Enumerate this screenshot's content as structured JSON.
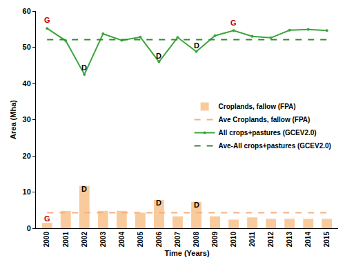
{
  "chart_data": {
    "type": "bar",
    "x_label": "Time (Years)",
    "y_label": "Area (Mha)",
    "categories": [
      "2000",
      "2001",
      "2002",
      "2003",
      "2004",
      "2005",
      "2006",
      "2007",
      "2008",
      "2009",
      "2010",
      "2011",
      "2012",
      "2013",
      "2014",
      "2015"
    ],
    "series": [
      {
        "name": "Croplands, fallow (FPA)",
        "type": "bar",
        "color": "#f9cb9c",
        "values": [
          1.5,
          4.8,
          11.7,
          4.8,
          4.8,
          4.3,
          7.8,
          3.3,
          7.3,
          3.3,
          2.4,
          3.0,
          2.6,
          2.6,
          2.6,
          2.6
        ]
      },
      {
        "name": "Ave Croplands, fallow (FPA)",
        "type": "line",
        "line_style": "dashed",
        "color": "#f4b183",
        "values": [
          4.3,
          4.3,
          4.3,
          4.3,
          4.3,
          4.3,
          4.3,
          4.3,
          4.3,
          4.3,
          4.3,
          4.3,
          4.3,
          4.3,
          4.3,
          4.3
        ]
      },
      {
        "name": "All crops+pastures (GCEV2.0)",
        "type": "line",
        "line_style": "solid",
        "marker": "circle",
        "color": "#3aa63a",
        "values": [
          55.2,
          51.8,
          42.5,
          53.7,
          51.9,
          52.8,
          46.0,
          52.7,
          48.8,
          53.2,
          54.6,
          53.0,
          52.6,
          54.7,
          54.9,
          54.6
        ]
      },
      {
        "name": "Ave-All crops+pastures (GCEV2.0)",
        "type": "line",
        "line_style": "dashed",
        "color": "#2e8b2e",
        "values": [
          52.1,
          52.1,
          52.1,
          52.1,
          52.1,
          52.1,
          52.1,
          52.1,
          52.1,
          52.1,
          52.1,
          52.1,
          52.1,
          52.1,
          52.1,
          52.1
        ]
      }
    ],
    "annotations": [
      {
        "text": "G",
        "x": "2000",
        "y": 57.5,
        "color": "#c00000"
      },
      {
        "text": "D",
        "x": "2002",
        "y": 44.3,
        "color": "#000000"
      },
      {
        "text": "D",
        "x": "2006",
        "y": 47.6,
        "color": "#000000"
      },
      {
        "text": "D",
        "x": "2008",
        "y": 50.4,
        "color": "#000000"
      },
      {
        "text": "G",
        "x": "2010",
        "y": 56.8,
        "color": "#c00000"
      },
      {
        "text": "G",
        "x": "2000",
        "y": 2.6,
        "color": "#c00000"
      },
      {
        "text": "D",
        "x": "2002",
        "y": 10.8,
        "color": "#000000"
      },
      {
        "text": "D",
        "x": "2006",
        "y": 7.0,
        "color": "#000000"
      },
      {
        "text": "D",
        "x": "2008",
        "y": 6.5,
        "color": "#000000"
      }
    ],
    "ylim": [
      0,
      60
    ],
    "yticks": [
      0,
      10,
      20,
      30,
      40,
      50,
      60
    ],
    "grid": false,
    "legend": "right"
  }
}
